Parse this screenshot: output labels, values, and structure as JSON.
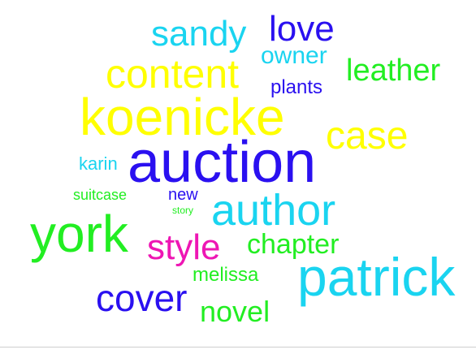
{
  "colors": {
    "cyan": "#1ad4f0",
    "yellow": "#ffff00",
    "blue": "#2a10f0",
    "green": "#22ee22",
    "magenta": "#ee16b4"
  },
  "words": [
    {
      "text": "sandy"
    },
    {
      "text": "love"
    },
    {
      "text": "owner"
    },
    {
      "text": "content"
    },
    {
      "text": "leather"
    },
    {
      "text": "plants"
    },
    {
      "text": "koenicke"
    },
    {
      "text": "case"
    },
    {
      "text": "karin"
    },
    {
      "text": "auction"
    },
    {
      "text": "suitcase"
    },
    {
      "text": "new"
    },
    {
      "text": "story"
    },
    {
      "text": "author"
    },
    {
      "text": "york"
    },
    {
      "text": "style"
    },
    {
      "text": "chapter"
    },
    {
      "text": "melissa"
    },
    {
      "text": "patrick"
    },
    {
      "text": "cover"
    },
    {
      "text": "novel"
    }
  ]
}
